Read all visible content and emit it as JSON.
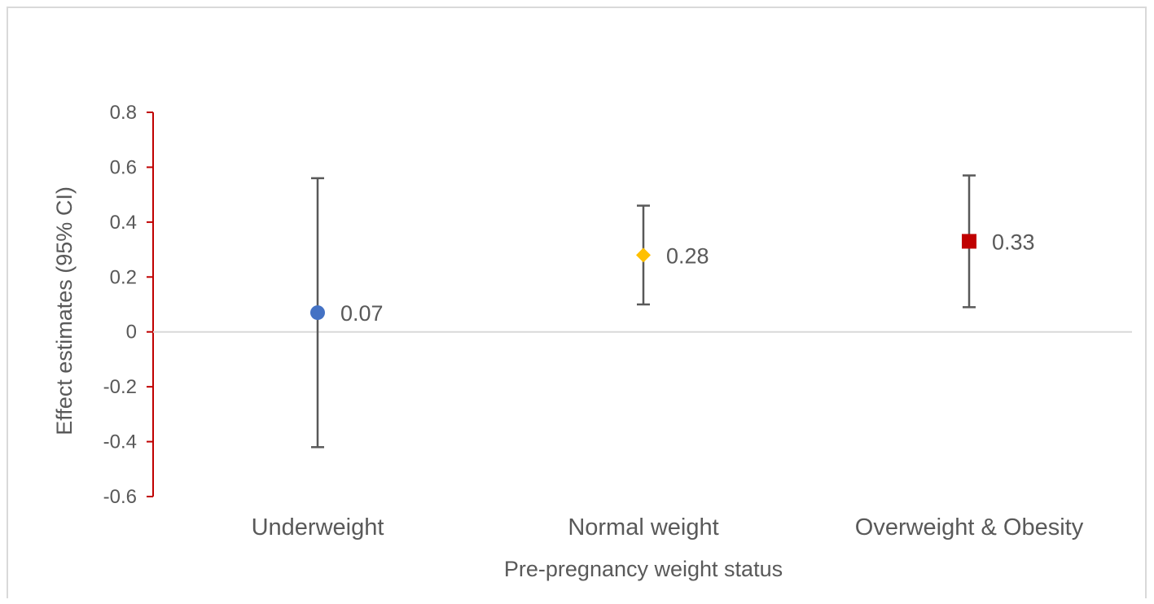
{
  "chart_data": {
    "type": "scatter",
    "title": "",
    "xlabel": "Pre-pregnancy weight status",
    "ylabel": "Effect estimates (95% CI)",
    "ylim": [
      -0.6,
      0.8
    ],
    "yticks": [
      0.8,
      0.6,
      0.4,
      0.2,
      0,
      -0.2,
      -0.4,
      -0.6
    ],
    "ytick_labels": [
      "0.8",
      "0.6",
      "0.4",
      "0.2",
      "0",
      "-0.2",
      "-0.4",
      "-0.6"
    ],
    "categories": [
      "Underweight",
      "Normal weight",
      "Overweight & Obesity"
    ],
    "points": [
      {
        "category": "Underweight",
        "estimate": 0.07,
        "ci_low": -0.42,
        "ci_high": 0.56,
        "label": "0.07",
        "marker": "circle",
        "color": "#4472c4"
      },
      {
        "category": "Normal weight",
        "estimate": 0.28,
        "ci_low": 0.1,
        "ci_high": 0.46,
        "label": "0.28",
        "marker": "diamond",
        "color": "#ffc000"
      },
      {
        "category": "Overweight & Obesity",
        "estimate": 0.33,
        "ci_low": 0.09,
        "ci_high": 0.57,
        "label": "0.33",
        "marker": "square",
        "color": "#c00000"
      }
    ],
    "grid": false,
    "legend": "none",
    "colors": {
      "y_axis": "#c00000",
      "zero_line": "#d9d9d9",
      "error_bar": "#595959",
      "text": "#595959"
    }
  }
}
